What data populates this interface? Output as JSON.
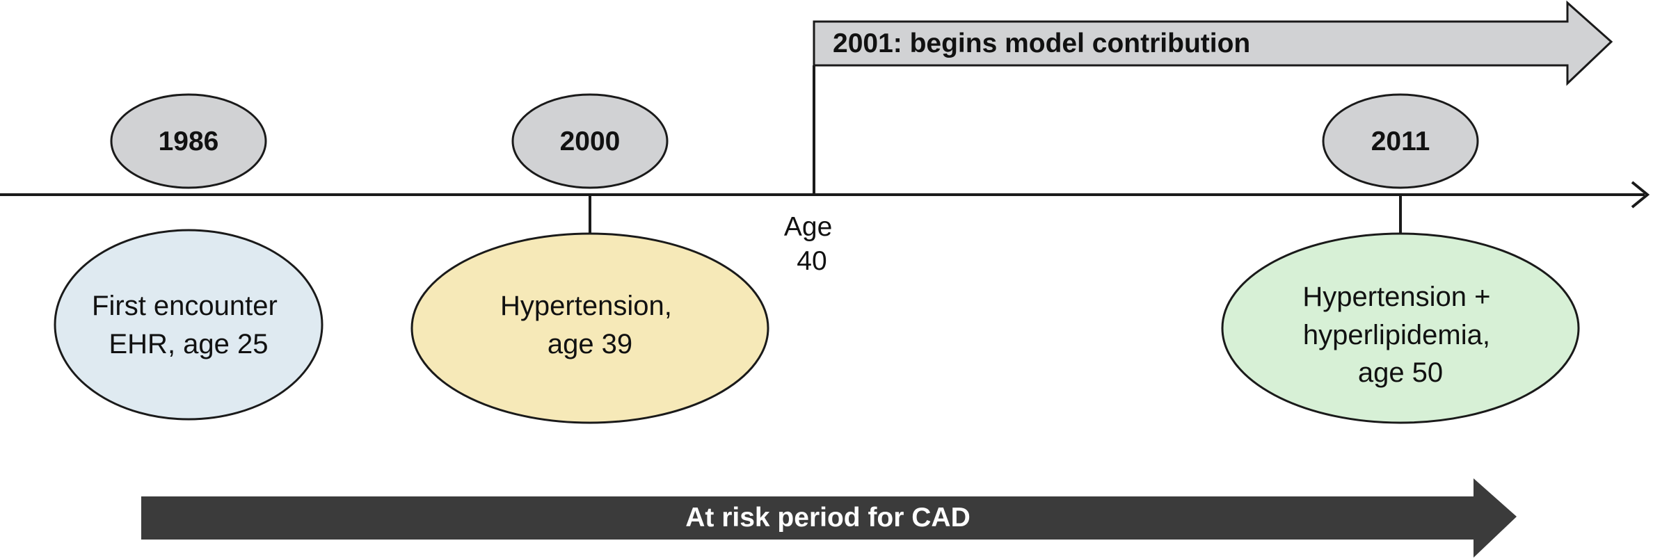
{
  "timeline": {
    "years": [
      {
        "id": "1986",
        "label": "1986"
      },
      {
        "id": "2000",
        "label": "2000"
      },
      {
        "id": "2011",
        "label": "2011"
      }
    ],
    "events": [
      {
        "id": "first-encounter",
        "lines": [
          "First encounter",
          "EHR, age 25"
        ]
      },
      {
        "id": "hypertension",
        "lines": [
          "Hypertension,",
          "age 39"
        ]
      },
      {
        "id": "hypertension-hyperlipidemia",
        "lines": [
          "Hypertension +",
          "hyperlipidemia,",
          "age 50"
        ]
      }
    ],
    "age_marker": {
      "lines": [
        "Age",
        "40"
      ]
    },
    "model_arrow": {
      "label": "2001: begins model contribution"
    },
    "risk_arrow": {
      "label": "At risk period for CAD"
    }
  },
  "colors": {
    "year_fill": "#d1d2d4",
    "event_1986_fill": "#dfeaf1",
    "event_2000_fill": "#f6e9b8",
    "event_2011_fill": "#d7f0d6",
    "model_arrow_fill": "#d1d2d4",
    "risk_arrow_fill": "#3b3b3b",
    "stroke": "#1a1a1a"
  }
}
